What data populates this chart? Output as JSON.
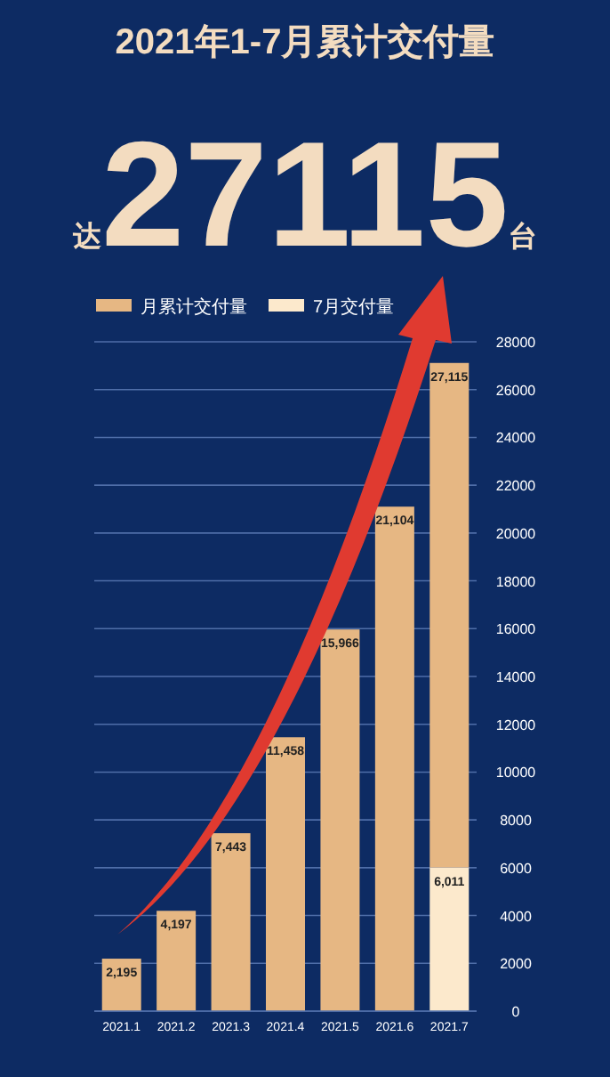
{
  "chart_data": {
    "type": "bar",
    "title": "2021年1-7月累计交付量",
    "subtitle": "达27115台",
    "categories": [
      "2021.1",
      "2021.2",
      "2021.3",
      "2021.4",
      "2021.5",
      "2021.6",
      "2021.7"
    ],
    "stacked": true,
    "series": [
      {
        "name": "7月交付量",
        "color": "#fce9cc",
        "values": [
          null,
          null,
          null,
          null,
          null,
          null,
          6011
        ],
        "value_labels": [
          null,
          null,
          null,
          null,
          null,
          null,
          "6,011"
        ]
      },
      {
        "name": "月累计交付量",
        "color": "#e6b783",
        "values": [
          2195,
          4197,
          7443,
          11458,
          15966,
          21104,
          21104
        ]
      }
    ],
    "totals": [
      "2,195",
      "4,197",
      "7,443",
      "11,458",
      "15,966",
      "21,104",
      "27,115"
    ],
    "ylim": [
      0,
      28000
    ],
    "yticks": [
      0,
      2000,
      4000,
      6000,
      8000,
      10000,
      12000,
      14000,
      16000,
      18000,
      20000,
      22000,
      24000,
      26000,
      28000
    ],
    "grid": "y",
    "legend": "top left"
  }
}
